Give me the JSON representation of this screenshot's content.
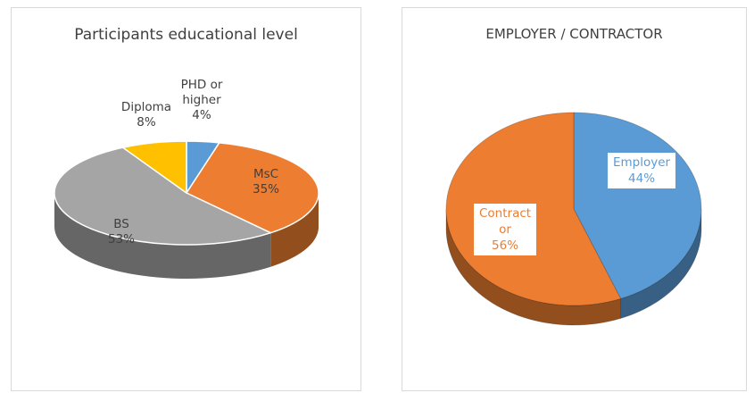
{
  "chart_data": [
    {
      "type": "pie",
      "title": "Participants educational level",
      "categories": [
        "PHD or higher",
        "MsC",
        "BS",
        "Diploma"
      ],
      "values": [
        4,
        35,
        53,
        8
      ],
      "labels": [
        {
          "name": [
            "PHD or",
            "higher"
          ],
          "value": "4%"
        },
        {
          "name": [
            "MsC"
          ],
          "value": "35%"
        },
        {
          "name": [
            "BS"
          ],
          "value": "53%"
        },
        {
          "name": [
            "Diploma"
          ],
          "value": "8%"
        }
      ],
      "colors": [
        "#5b9bd5",
        "#ed7d31",
        "#a5a5a5",
        "#ffc000"
      ],
      "style": "3d"
    },
    {
      "type": "pie",
      "title": "EMPLOYER / CONTRACTOR",
      "categories": [
        "Employer",
        "Contractor"
      ],
      "values": [
        44,
        56
      ],
      "labels": [
        {
          "name": [
            "Employer"
          ],
          "value": "44%"
        },
        {
          "name": [
            "Contract",
            "or"
          ],
          "value": "56%"
        }
      ],
      "colors": [
        "#5b9bd5",
        "#ed7d31"
      ],
      "style": "3d"
    }
  ]
}
